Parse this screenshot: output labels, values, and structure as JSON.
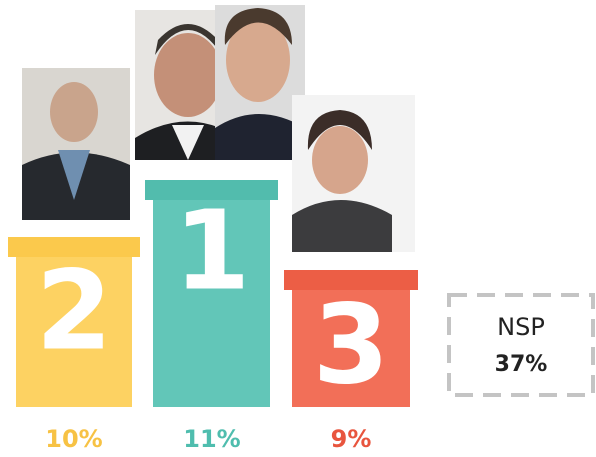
{
  "podium": [
    {
      "rank": "2",
      "percent": "10%"
    },
    {
      "rank": "1",
      "percent": "11%"
    },
    {
      "rank": "3",
      "percent": "9%"
    }
  ],
  "other": {
    "label": "NSP",
    "percent": "37%"
  }
}
